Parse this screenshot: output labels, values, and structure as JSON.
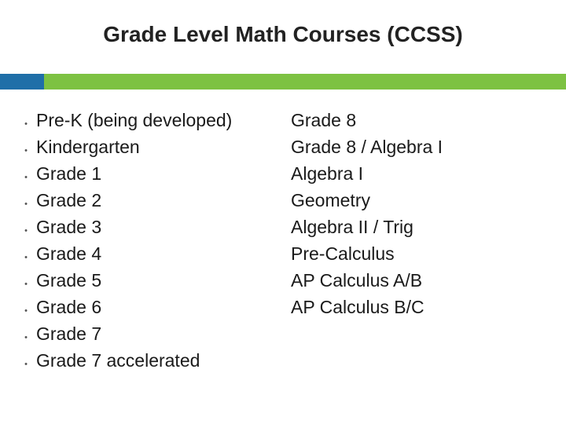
{
  "title": "Grade Level Math Courses (CCSS)",
  "accent": {
    "left_color": "#1f6fa8",
    "right_color": "#7dc242"
  },
  "bullet_glyph": "•",
  "columns": {
    "left": [
      "Pre-K (being developed)",
      "Kindergarten",
      "Grade 1",
      "Grade 2",
      "Grade 3",
      "Grade 4",
      "Grade 5",
      "Grade 6",
      "Grade 7",
      "Grade 7 accelerated"
    ],
    "right": [
      "Grade 8",
      "Grade 8 / Algebra I",
      "Algebra I",
      "Geometry",
      "Algebra II / Trig",
      "Pre-Calculus",
      "AP Calculus A/B",
      "AP Calculus B/C"
    ]
  },
  "text_color": "#1a1a1a",
  "background_color": "#ffffff",
  "title_fontsize": 28,
  "item_fontsize": 23
}
